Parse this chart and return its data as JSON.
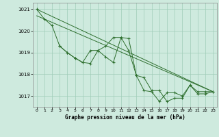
{
  "title": "Graphe pression niveau de la mer (hPa)",
  "background_color": "#ceeade",
  "grid_color": "#a0ccb8",
  "line_color": "#2d6e2d",
  "ylim": [
    1016.5,
    1021.3
  ],
  "xlim": [
    -0.5,
    23.5
  ],
  "yticks": [
    1017,
    1018,
    1019,
    1020,
    1021
  ],
  "xticks": [
    0,
    1,
    2,
    3,
    4,
    5,
    6,
    7,
    8,
    9,
    10,
    11,
    12,
    13,
    14,
    15,
    16,
    17,
    18,
    19,
    20,
    21,
    22,
    23
  ],
  "lines": [
    {
      "x": [
        0,
        23
      ],
      "y": [
        1021.0,
        1017.2
      ],
      "has_markers": false
    },
    {
      "x": [
        0,
        23
      ],
      "y": [
        1020.7,
        1017.2
      ],
      "has_markers": false
    },
    {
      "x": [
        0,
        1,
        2,
        3,
        4,
        5,
        6,
        7,
        8,
        9,
        10,
        11,
        12,
        13,
        14,
        15,
        16,
        17,
        18,
        19,
        20,
        21,
        22,
        23
      ],
      "y": [
        1021.0,
        1020.55,
        1020.25,
        1019.3,
        1019.0,
        1018.75,
        1018.55,
        1018.5,
        1019.1,
        1019.3,
        1019.7,
        1019.7,
        1019.1,
        1017.95,
        1017.25,
        1017.2,
        1016.75,
        1017.15,
        1017.15,
        1017.0,
        1017.5,
        1017.2,
        1017.2,
        1017.2
      ],
      "has_markers": true
    },
    {
      "x": [
        3,
        4,
        5,
        6,
        7,
        8,
        9,
        10,
        11,
        12,
        13,
        14,
        15,
        16,
        17,
        18,
        19,
        20,
        21,
        22,
        23
      ],
      "y": [
        1019.3,
        1019.0,
        1018.75,
        1018.55,
        1019.1,
        1019.1,
        1018.8,
        1018.55,
        1019.7,
        1019.65,
        1017.95,
        1017.85,
        1017.25,
        1017.25,
        1016.75,
        1016.9,
        1016.9,
        1017.5,
        1017.1,
        1017.1,
        1017.2
      ],
      "has_markers": true
    }
  ]
}
